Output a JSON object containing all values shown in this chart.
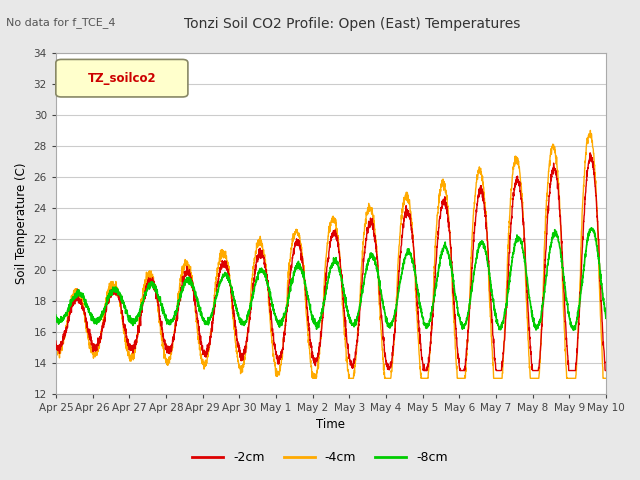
{
  "title": "Tonzi Soil CO2 Profile: Open (East) Temperatures",
  "suptitle": "No data for f_TCE_4",
  "ylabel": "Soil Temperature (C)",
  "xlabel": "Time",
  "legend_label": "TZ_soilco2",
  "ylim": [
    12,
    34
  ],
  "series_labels": [
    "-2cm",
    "-4cm",
    "-8cm"
  ],
  "series_colors": [
    "#dd0000",
    "#ffaa00",
    "#00cc00"
  ],
  "bg_color": "#e8e8e8",
  "plot_bg": "#ffffff",
  "grid_color": "#cccccc",
  "x_tick_labels": [
    "Apr 25",
    "Apr 26",
    "Apr 27",
    "Apr 28",
    "Apr 29",
    "Apr 30",
    "May 1",
    "May 2",
    "May 3",
    "May 4",
    "May 5",
    "May 6",
    "May 7",
    "May 8",
    "May 9",
    "May 10"
  ]
}
